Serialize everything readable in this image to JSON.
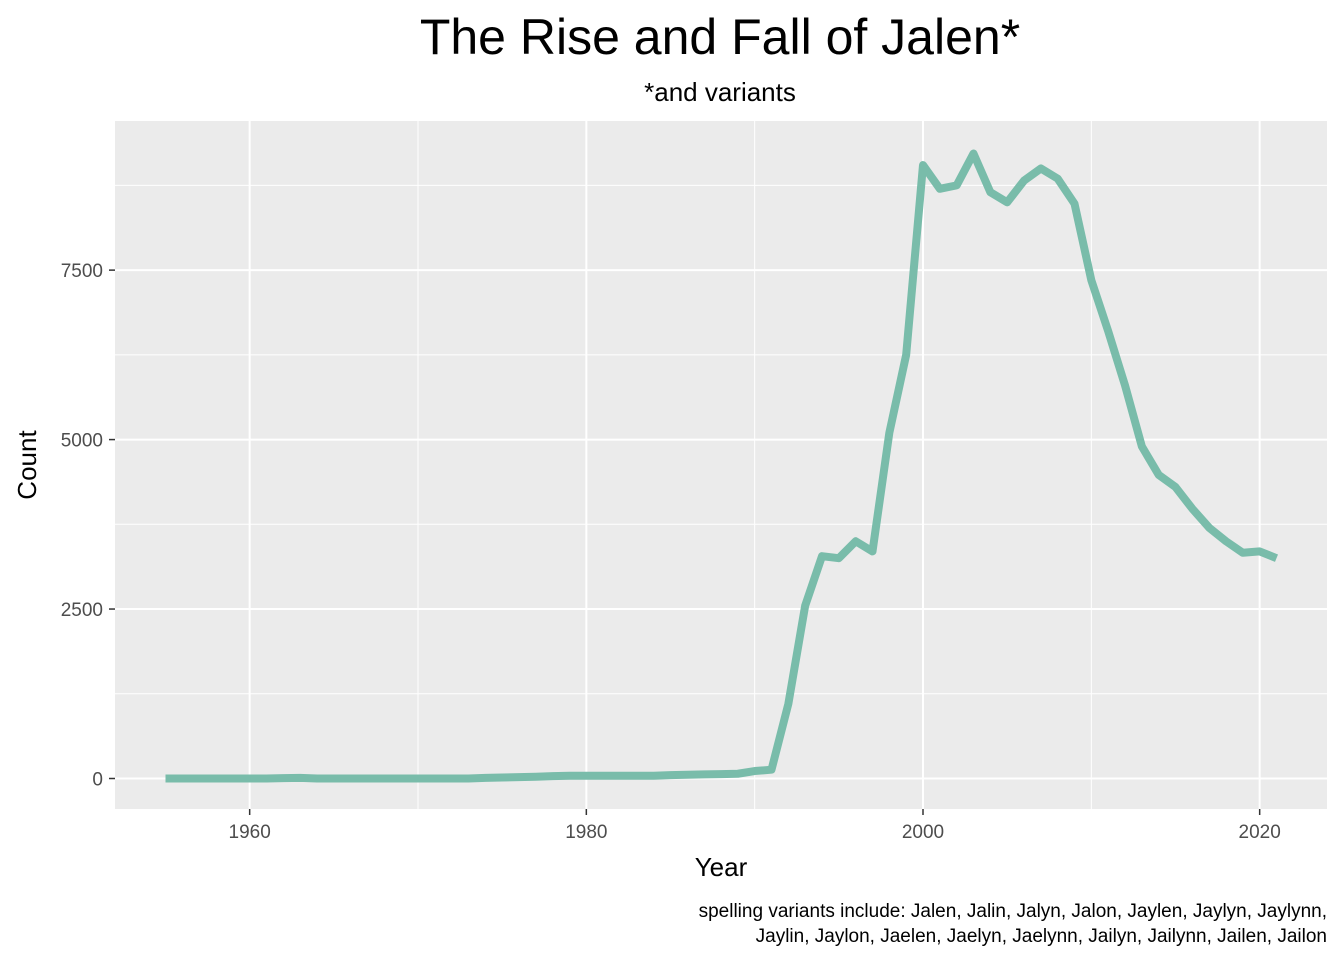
{
  "chart_data": {
    "type": "line",
    "title": "The Rise and Fall of Jalen*",
    "subtitle": "*and variants",
    "xlabel": "Year",
    "ylabel": "Count",
    "caption_lines": [
      "spelling variants include: Jalen, Jalin, Jalyn, Jalon, Jaylen, Jaylyn, Jaylynn,",
      "Jaylin, Jaylon, Jaelen, Jaelyn, Jaelynn, Jailyn, Jailynn, Jailen, Jailon"
    ],
    "xlim": [
      1952,
      2024
    ],
    "ylim": [
      -450,
      9700
    ],
    "x_ticks": [
      1960,
      1980,
      2000,
      2020
    ],
    "x_tick_labels": [
      "1960",
      "1980",
      "2000",
      "2020"
    ],
    "y_ticks": [
      0,
      2500,
      5000,
      7500
    ],
    "y_tick_labels": [
      "0",
      "2500",
      "5000",
      "7500"
    ],
    "grid": true,
    "line_color": "#79bcaa",
    "panel_color": "#ebebeb",
    "grid_color": "#ffffff",
    "x": [
      1955,
      1956,
      1957,
      1958,
      1959,
      1960,
      1961,
      1962,
      1963,
      1964,
      1965,
      1966,
      1967,
      1968,
      1969,
      1970,
      1971,
      1972,
      1973,
      1974,
      1975,
      1976,
      1977,
      1978,
      1979,
      1980,
      1981,
      1982,
      1983,
      1984,
      1985,
      1986,
      1987,
      1988,
      1989,
      1990,
      1991,
      1992,
      1993,
      1994,
      1995,
      1996,
      1997,
      1998,
      1999,
      2000,
      2001,
      2002,
      2003,
      2004,
      2005,
      2006,
      2007,
      2008,
      2009,
      2010,
      2011,
      2012,
      2013,
      2014,
      2015,
      2016,
      2017,
      2018,
      2019,
      2020,
      2021
    ],
    "values": [
      0,
      0,
      0,
      0,
      0,
      0,
      0,
      5,
      10,
      0,
      0,
      0,
      0,
      0,
      0,
      0,
      0,
      0,
      0,
      10,
      15,
      20,
      25,
      35,
      40,
      40,
      40,
      40,
      40,
      40,
      50,
      55,
      60,
      65,
      70,
      110,
      130,
      1100,
      2550,
      3280,
      3250,
      3500,
      3350,
      5100,
      6250,
      9050,
      8700,
      8750,
      9220,
      8650,
      8500,
      8820,
      9000,
      8850,
      8480,
      7350,
      6600,
      5800,
      4900,
      4480,
      4300,
      3980,
      3700,
      3500,
      3330,
      3350,
      3250
    ]
  }
}
